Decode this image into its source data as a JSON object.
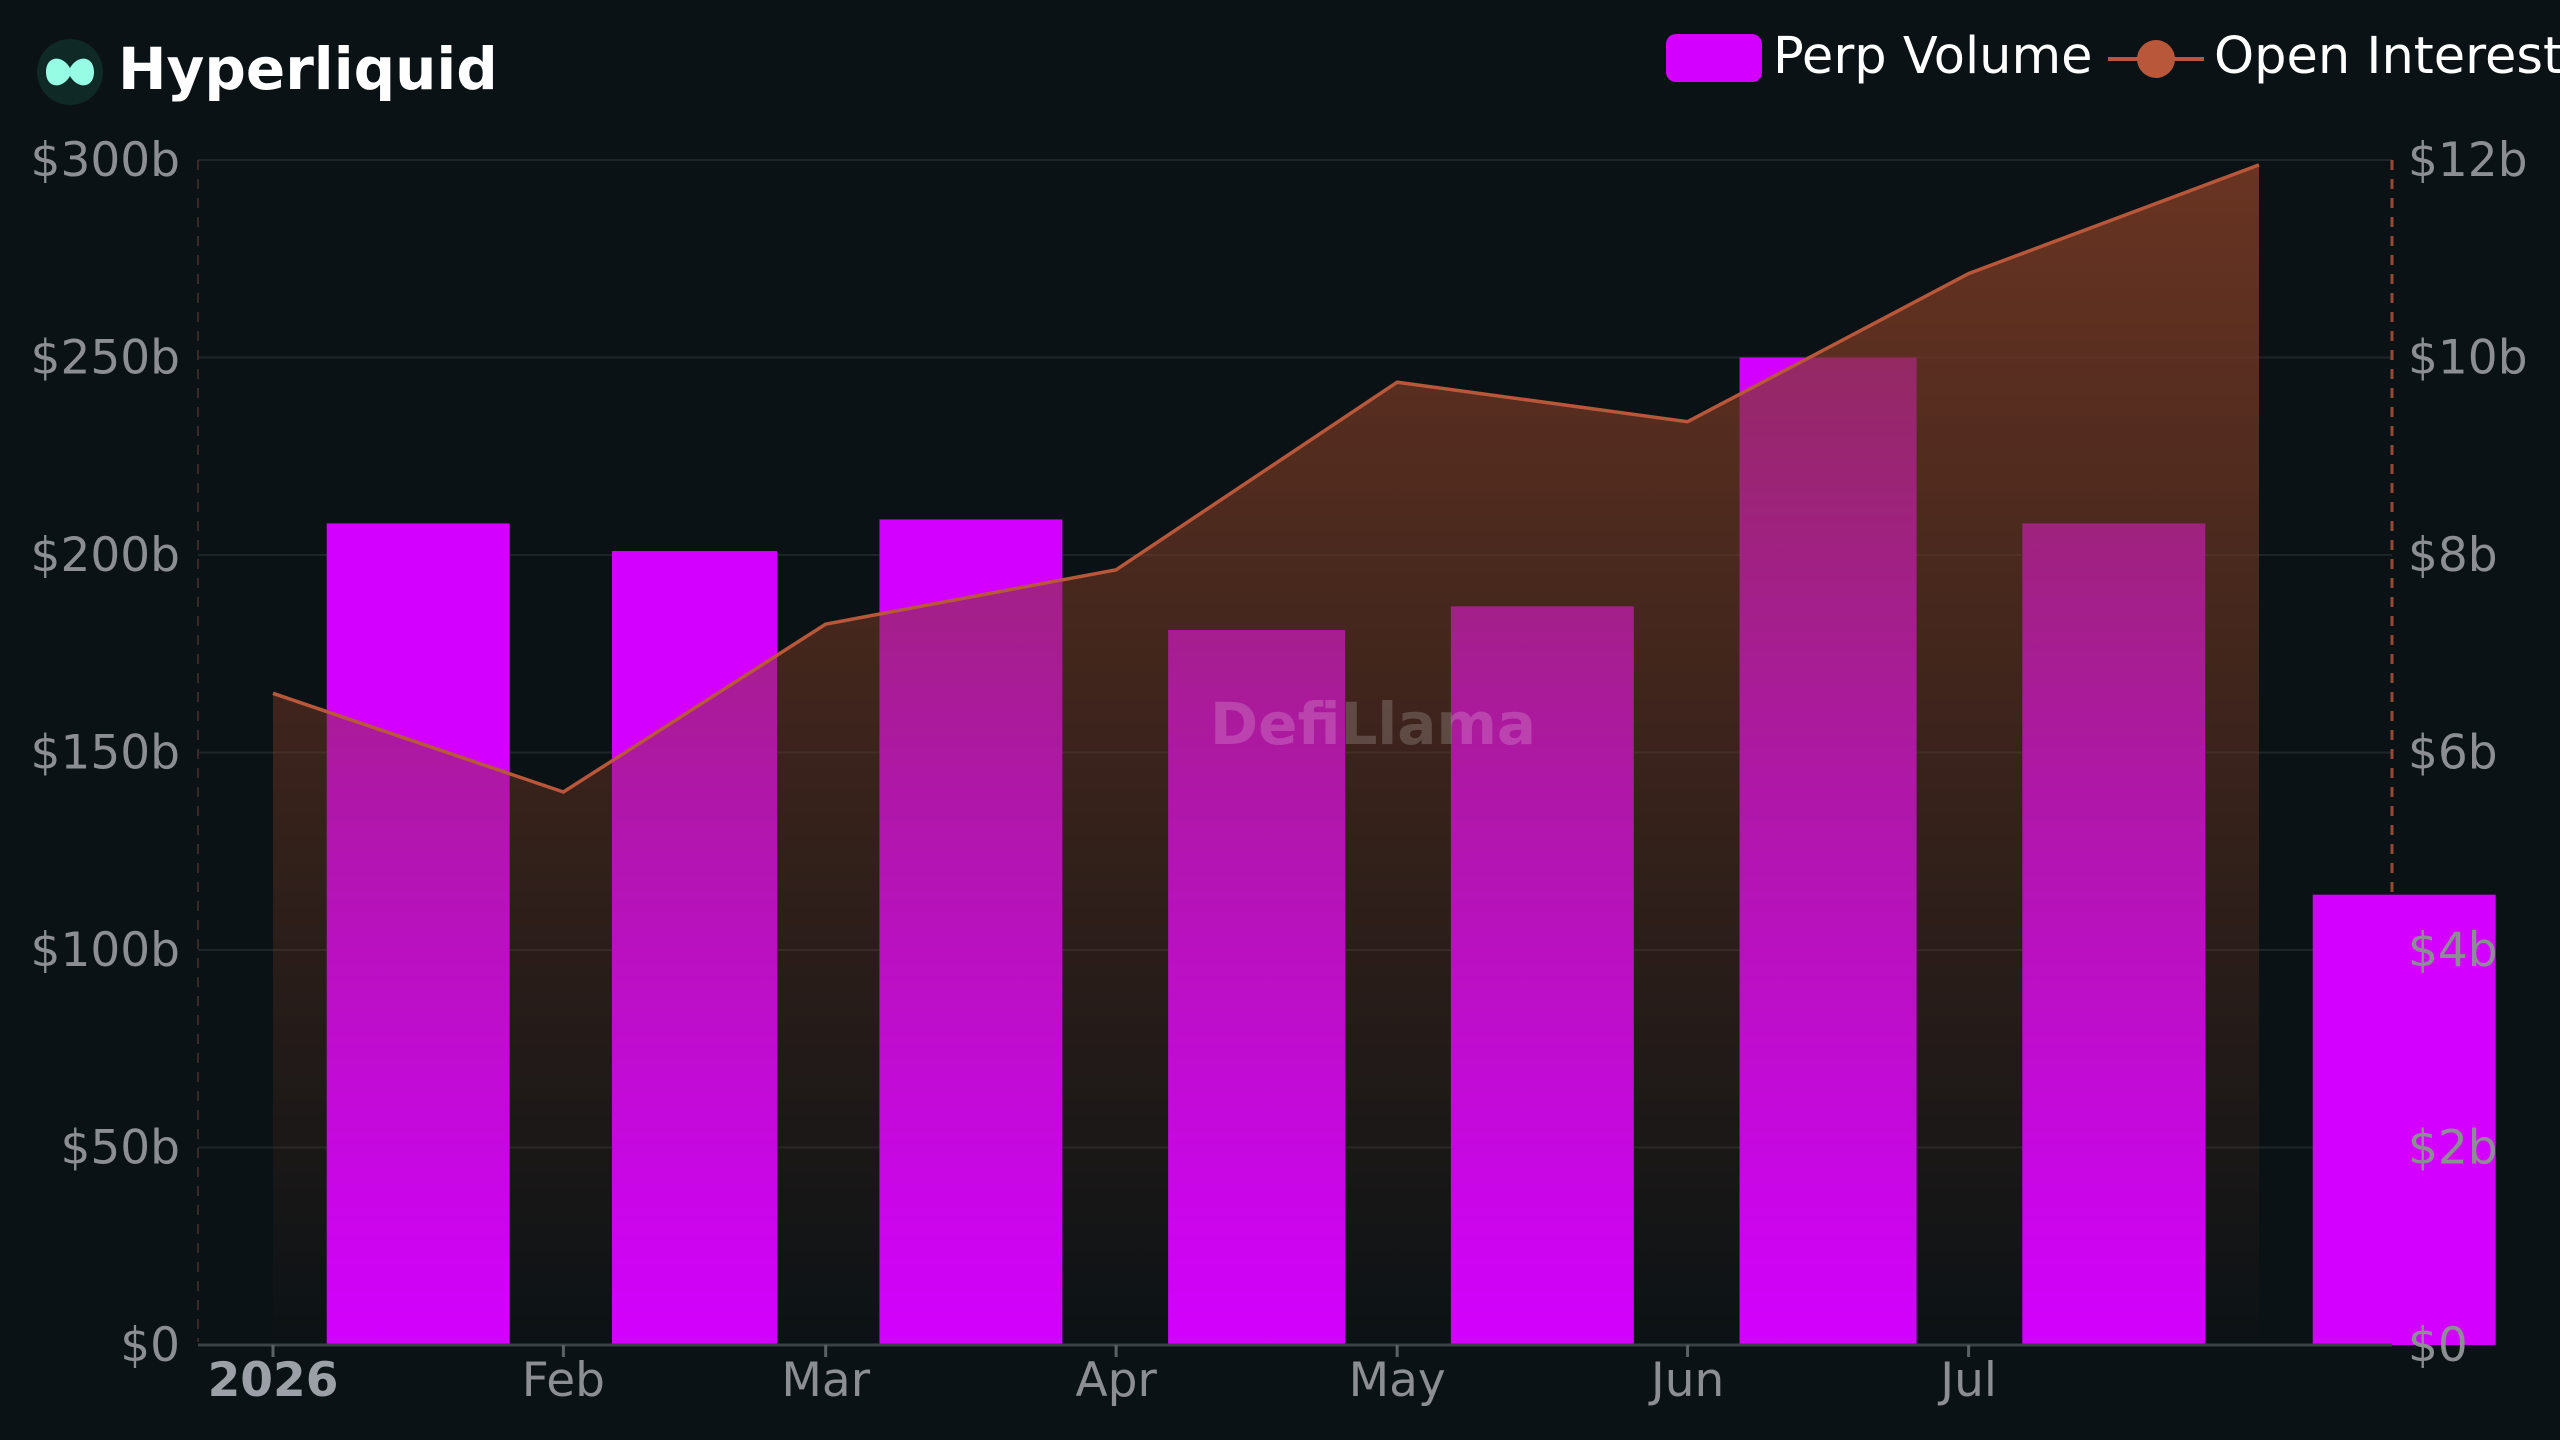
{
  "brand": {
    "name": "Hyperliquid",
    "icon": "hyperliquid-logo-icon",
    "icon_color": "#97fce4",
    "icon_bg": "#0f2a26"
  },
  "watermark": "DefiLlama",
  "legend": {
    "bar_label": "Perp Volume",
    "line_label": "Open Interest"
  },
  "colors": {
    "background": "#0b1215",
    "bar": "#d300ff",
    "line": "#b8573a",
    "area_top": "#7a3a24",
    "grid": "#1c2528",
    "axis": "#3a4246",
    "tick_text": "#8b8f94"
  },
  "chart_data": {
    "type": "bar+area",
    "x_labels": [
      "2026",
      "Feb",
      "Mar",
      "Apr",
      "May",
      "Jun",
      "Jul"
    ],
    "bar_months": [
      "2026-01",
      "2026-02",
      "2026-03",
      "2026-04",
      "2026-05",
      "2026-06",
      "2026-07",
      "2026-08"
    ],
    "series": [
      {
        "name": "Perp Volume",
        "type": "bar",
        "axis": "left",
        "unit": "USD billions",
        "values": [
          208,
          201,
          209,
          181,
          187,
          250,
          208,
          114
        ]
      },
      {
        "name": "Open Interest",
        "type": "area",
        "axis": "right",
        "unit": "USD billions",
        "points": [
          {
            "date": "2026-01-01",
            "value": 6.6
          },
          {
            "date": "2026-02-01",
            "value": 5.6
          },
          {
            "date": "2026-03-01",
            "value": 7.3
          },
          {
            "date": "2026-04-01",
            "value": 7.85
          },
          {
            "date": "2026-05-01",
            "value": 9.75
          },
          {
            "date": "2026-06-01",
            "value": 9.35
          },
          {
            "date": "2026-07-01",
            "value": 10.85
          },
          {
            "date": "2026-08-01",
            "value": 11.95
          }
        ]
      }
    ],
    "left_axis": {
      "ylim": [
        0,
        300
      ],
      "ticks": [
        "$0",
        "$50b",
        "$100b",
        "$150b",
        "$200b",
        "$250b",
        "$300b"
      ]
    },
    "right_axis": {
      "ylim": [
        0,
        12
      ],
      "ticks": [
        "$0",
        "$2b",
        "$4b",
        "$6b",
        "$8b",
        "$10b",
        "$12b"
      ]
    },
    "grid": true,
    "legend_position": "top-right"
  }
}
